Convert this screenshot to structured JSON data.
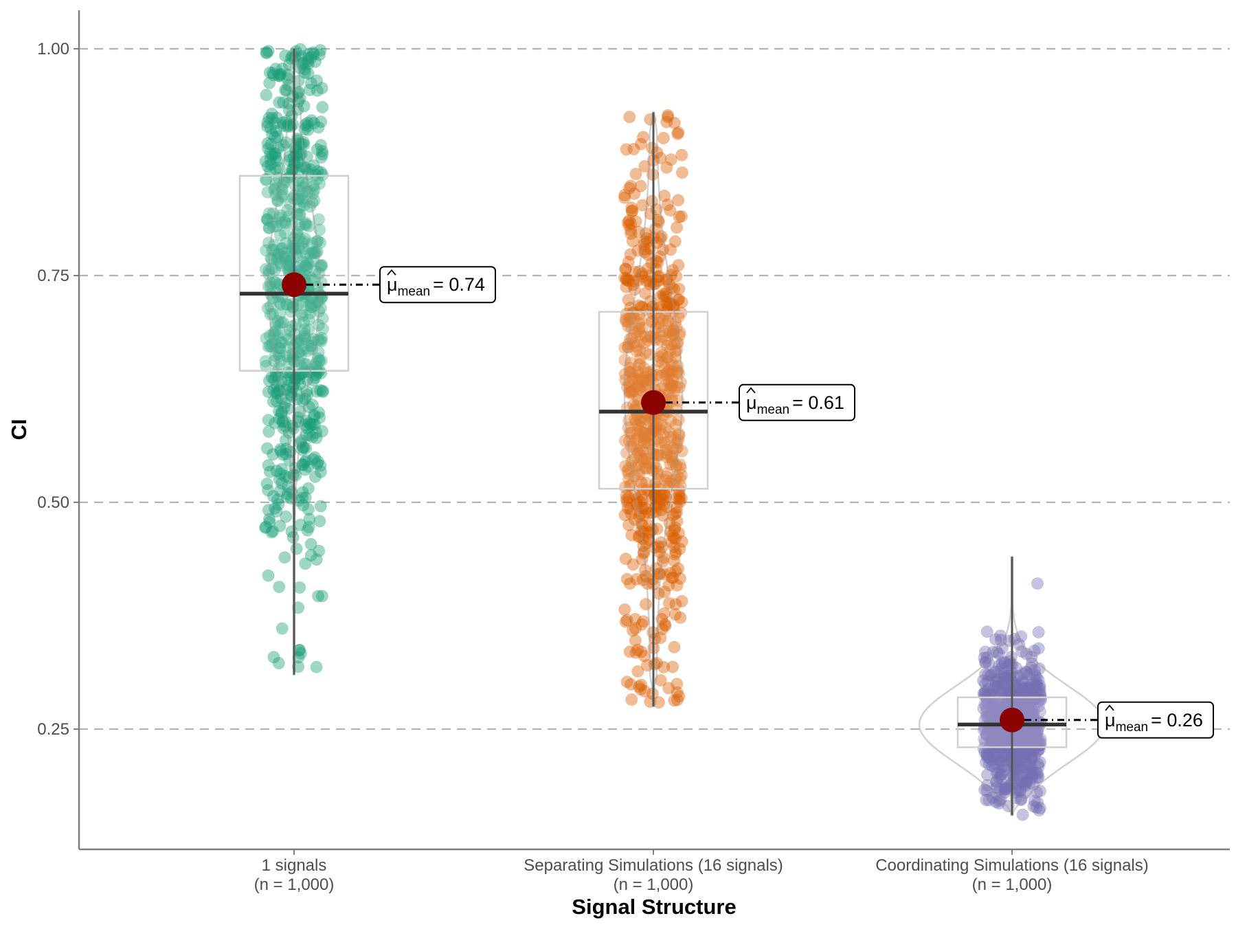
{
  "chart_data": {
    "type": "violin-box-jitter",
    "xlabel": "Signal Structure",
    "ylabel": "CI",
    "ylim": [
      0.12,
      1.04
    ],
    "yticks": [
      0.25,
      0.5,
      0.75,
      1.0
    ],
    "ytick_labels": [
      "0.25",
      "0.50",
      "0.75",
      "1.00"
    ],
    "grid": "horizontal dashed",
    "groups": [
      {
        "name": "1 signals",
        "n_label": "(n = 1,000)",
        "color": "#1b9e77",
        "min": 0.31,
        "q1": 0.645,
        "median": 0.73,
        "q3": 0.86,
        "max": 1.0,
        "mean": 0.74,
        "mean_label_symbol": "μ",
        "mean_label_sub": "mean",
        "mean_label_value": "= 0.74"
      },
      {
        "name": "Separating Simulations (16 signals)",
        "n_label": "(n = 1,000)",
        "color": "#d95f02",
        "min": 0.275,
        "q1": 0.515,
        "median": 0.6,
        "q3": 0.71,
        "max": 0.93,
        "mean": 0.61,
        "mean_label_symbol": "μ",
        "mean_label_sub": "mean",
        "mean_label_value": "= 0.61"
      },
      {
        "name": "Coordinating Simulations (16 signals)",
        "n_label": "(n = 1,000)",
        "color": "#7570b3",
        "min": 0.155,
        "q1": 0.23,
        "median": 0.255,
        "q3": 0.285,
        "max": 0.44,
        "mean": 0.26,
        "mean_label_symbol": "μ",
        "mean_label_sub": "mean",
        "mean_label_value": "= 0.26"
      }
    ],
    "mean_point_color": "#8b0000"
  }
}
